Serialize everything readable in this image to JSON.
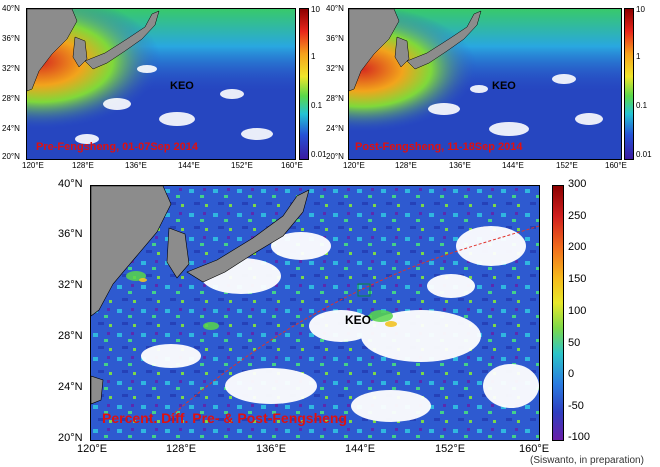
{
  "top_left": {
    "caption": "Pre-Fengsheng, 01-07Sep 2014",
    "keo_label": "KEO",
    "lat_labels": [
      "40°N",
      "36°N",
      "32°N",
      "28°N",
      "24°N",
      "20°N"
    ],
    "lon_labels": [
      "120°E",
      "128°E",
      "136°E",
      "144°E",
      "152°E",
      "160°E"
    ],
    "colorbar_labels": [
      "10",
      "1",
      "0.1",
      "0.01"
    ]
  },
  "top_right": {
    "caption": "Post-Fengsheng, 11-18Sep 2014",
    "keo_label": "KEO",
    "lat_labels": [
      "40°N",
      "36°N",
      "32°N",
      "28°N",
      "24°N",
      "20°N"
    ],
    "lon_labels": [
      "120°E",
      "128°E",
      "136°E",
      "144°E",
      "152°E",
      "160°E"
    ],
    "colorbar_labels": [
      "10",
      "1",
      "0.1",
      "0.01"
    ]
  },
  "bottom": {
    "caption": "Percent. Diff. Pre- & Post-Fengsheng",
    "keo_label": "KEO",
    "lat_labels": [
      "40°N",
      "36°N",
      "32°N",
      "28°N",
      "24°N",
      "20°N"
    ],
    "lon_labels": [
      "120°E",
      "128°E",
      "136°E",
      "144°E",
      "152°E",
      "160°E"
    ],
    "colorbar_labels": [
      "300",
      "250",
      "200",
      "150",
      "100",
      "50",
      "0",
      "-50",
      "-100"
    ]
  },
  "credit": "(Siswanto, in preparation)",
  "colors": {
    "caption": "#e01010",
    "ocean": "#2a52c9",
    "land": "#8c8c8c"
  }
}
